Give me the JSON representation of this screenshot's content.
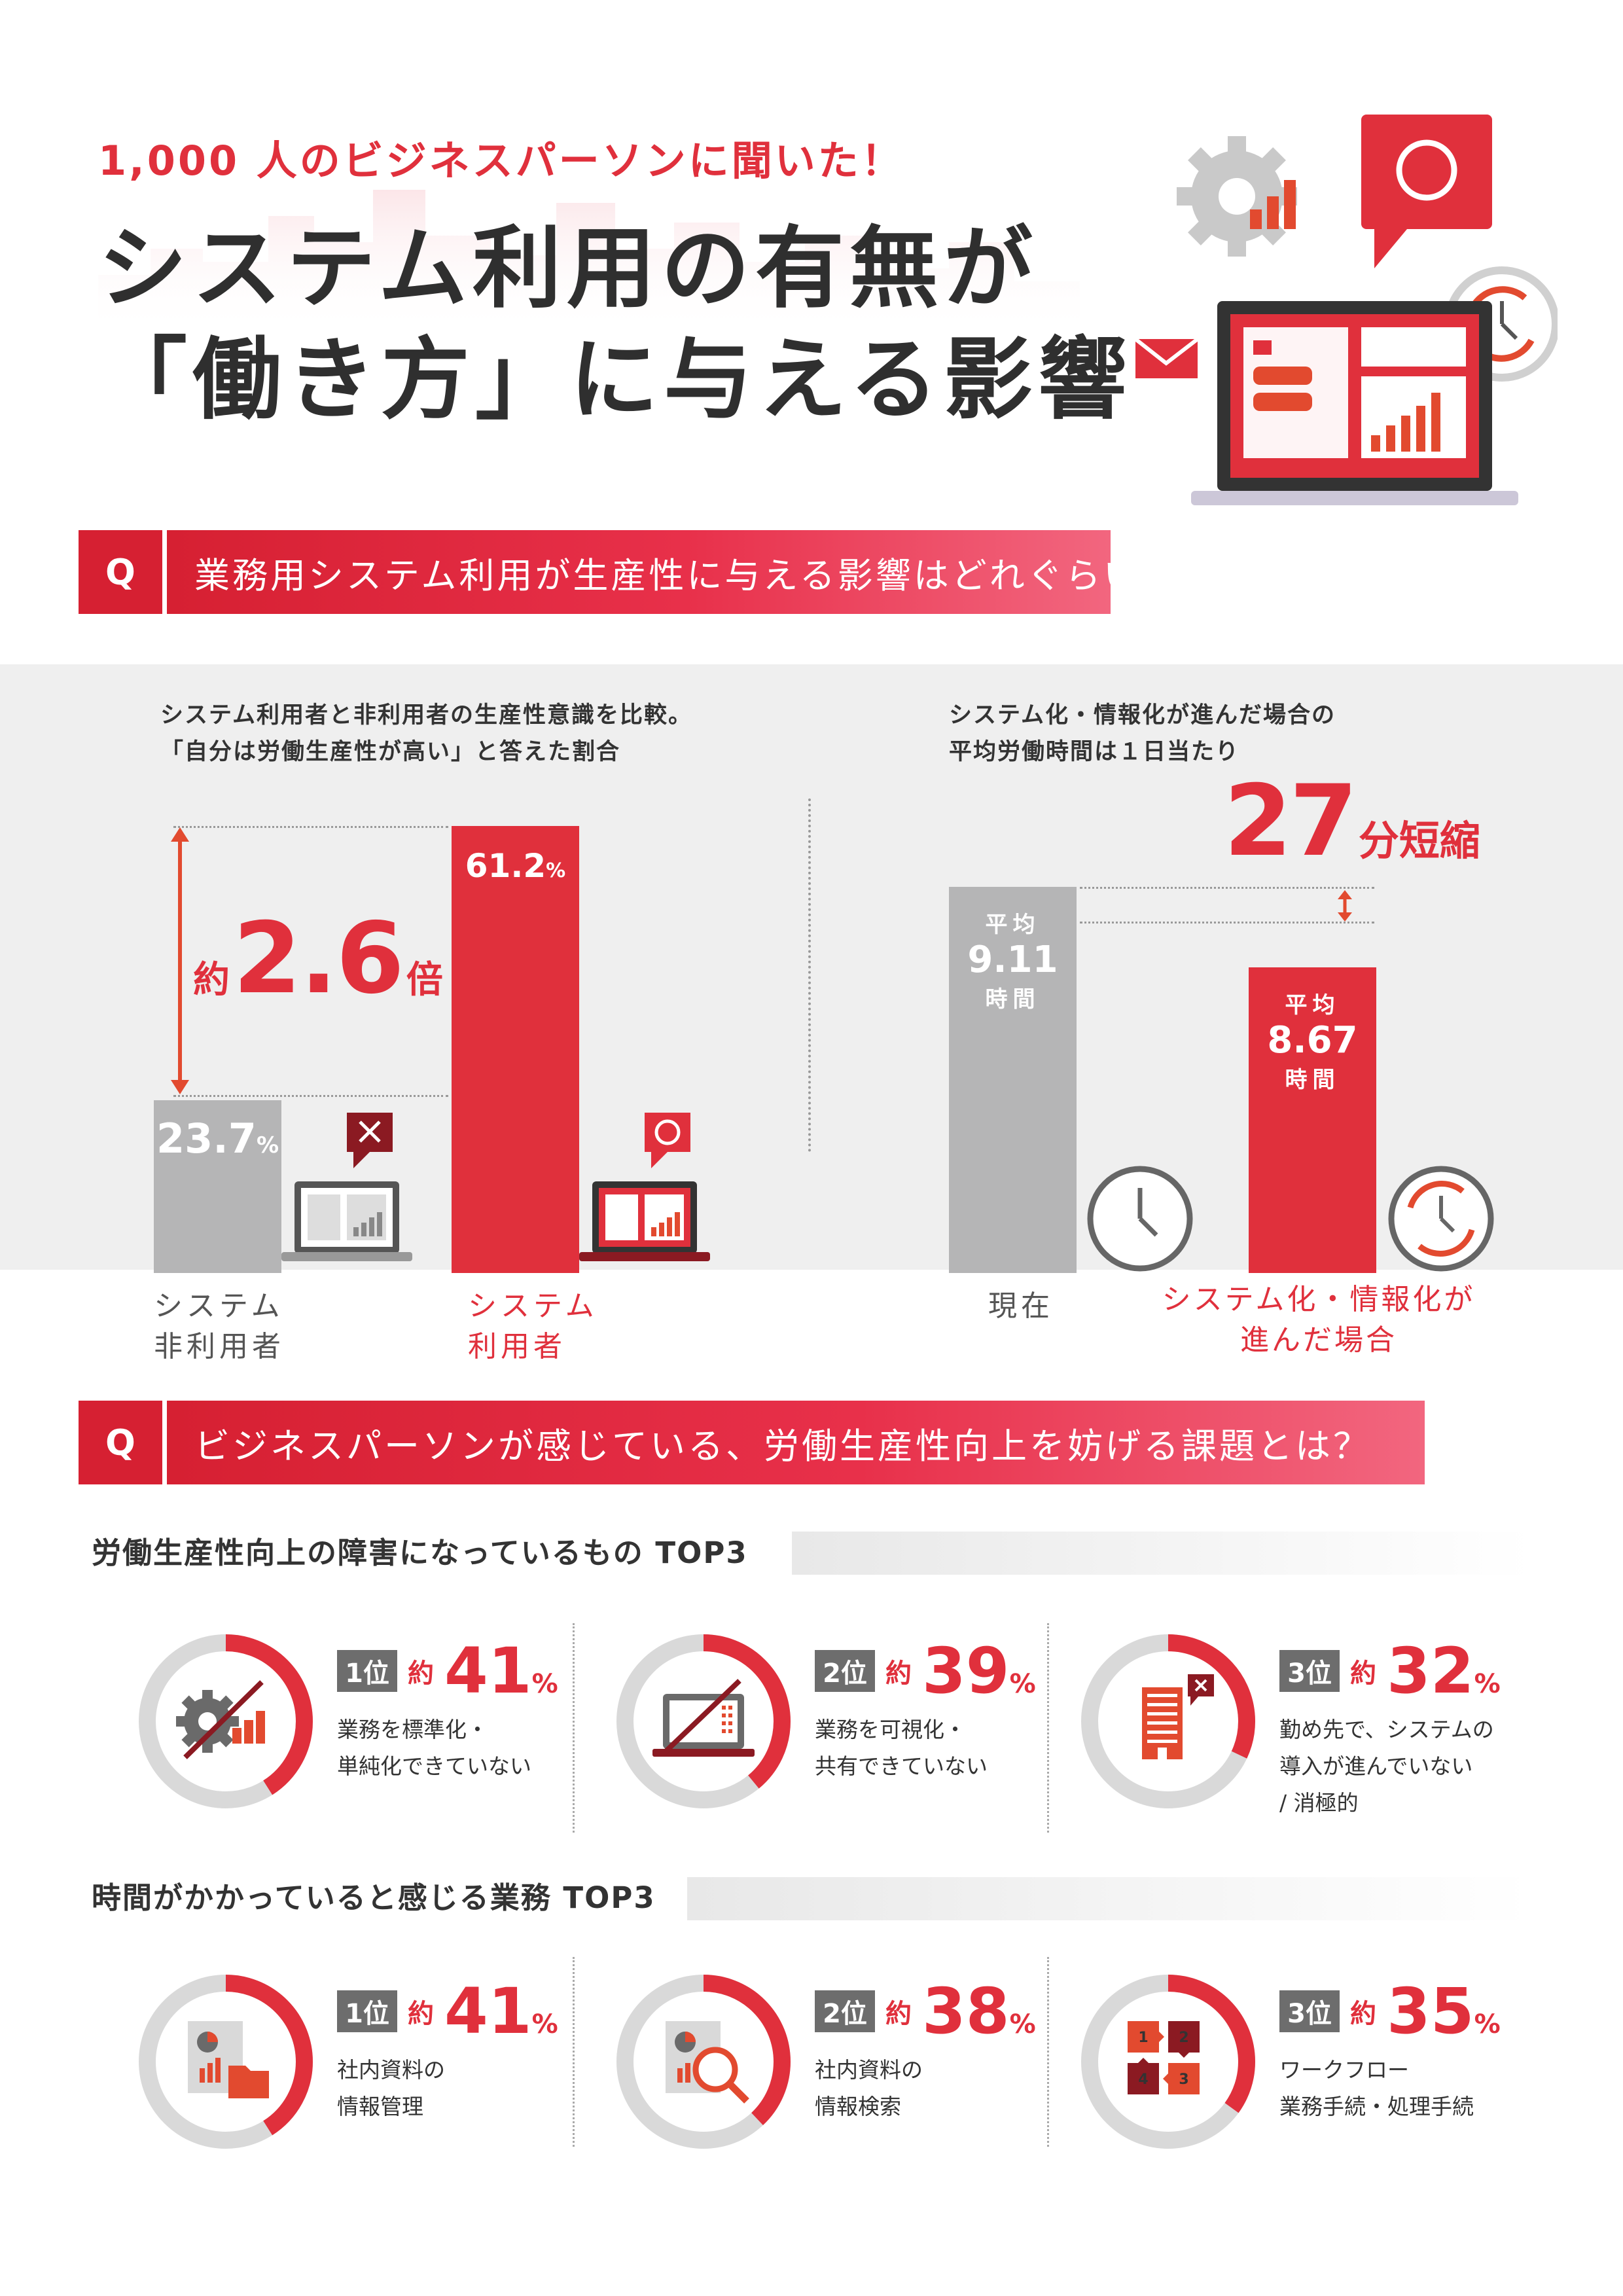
{
  "header": {
    "kicker": "1,000 人のビジネスパーソンに聞いた！",
    "title_line1": "システム利用の有無が",
    "title_line2": "「働き方」に与える影響"
  },
  "q1": {
    "badge": "Q",
    "text": "業務用システム利用が生産性に与える影響はどれぐらい？"
  },
  "q2": {
    "badge": "Q",
    "text": "ビジネスパーソンが感じている、労働生産性向上を妨げる課題とは？"
  },
  "colors": {
    "accent": "#e0303c",
    "gray_bar": "#b5b5b6",
    "dark_red": "#d62032"
  },
  "chart_data": [
    {
      "type": "bar",
      "note_line1": "システム利用者と非利用者の生産性意識を比較。",
      "note_line2": "「自分は労働生産性が高い」と答えた割合",
      "categories": [
        "システム非利用者",
        "システム利用者"
      ],
      "category_lines": [
        [
          "システム",
          "非利用者"
        ],
        [
          "システム",
          "利用者"
        ]
      ],
      "values": [
        23.7,
        61.2
      ],
      "value_labels": [
        "23.7",
        "61.2"
      ],
      "unit": "%",
      "callout": {
        "prefix": "約",
        "value": "2.6",
        "suffix": "倍"
      },
      "icons": [
        "cross-mark-icon",
        "circle-mark-icon"
      ]
    },
    {
      "type": "bar",
      "note_line1": "システム化・情報化が進んだ場合の",
      "note_line2": "平均労働時間は１日当たり",
      "categories": [
        "現在",
        "システム化・情報化が進んだ場合"
      ],
      "category_lines": [
        [
          "現在"
        ],
        [
          "システム化・情報化が",
          "進んだ場合"
        ]
      ],
      "values": [
        9.11,
        8.67
      ],
      "value_labels": [
        "9.11",
        "8.67"
      ],
      "value_prefix": "平均",
      "value_suffix": "時間",
      "callout": {
        "value": "27",
        "suffix": "分短縮"
      }
    }
  ],
  "top3_obstacles": {
    "heading": "労働生産性向上の障害になっているもの TOP3",
    "items": [
      {
        "rank": "1位",
        "approx": "約",
        "value": 41,
        "pct": "41",
        "sign": "%",
        "lines": [
          "業務を標準化・",
          "単純化できていない"
        ],
        "icon": "gear-chart-crossed-icon"
      },
      {
        "rank": "2位",
        "approx": "約",
        "value": 39,
        "pct": "39",
        "sign": "%",
        "lines": [
          "業務を可視化・",
          "共有できていない"
        ],
        "icon": "laptop-crossed-icon"
      },
      {
        "rank": "3位",
        "approx": "約",
        "value": 32,
        "pct": "32",
        "sign": "%",
        "lines": [
          "勤め先で、システムの",
          "導入が進んでいない",
          "/ 消極的"
        ],
        "icon": "office-building-icon"
      }
    ]
  },
  "top3_time": {
    "heading": "時間がかかっていると感じる業務 TOP3",
    "items": [
      {
        "rank": "1位",
        "approx": "約",
        "value": 41,
        "pct": "41",
        "sign": "%",
        "lines": [
          "社内資料の",
          "情報管理"
        ],
        "icon": "document-folder-icon"
      },
      {
        "rank": "2位",
        "approx": "約",
        "value": 38,
        "pct": "38",
        "sign": "%",
        "lines": [
          "社内資料の",
          "情報検索"
        ],
        "icon": "document-search-icon"
      },
      {
        "rank": "3位",
        "approx": "約",
        "value": 35,
        "pct": "35",
        "sign": "%",
        "lines": [
          "ワークフロー",
          "業務手続・処理手続"
        ],
        "icon": "workflow-steps-icon"
      }
    ]
  }
}
